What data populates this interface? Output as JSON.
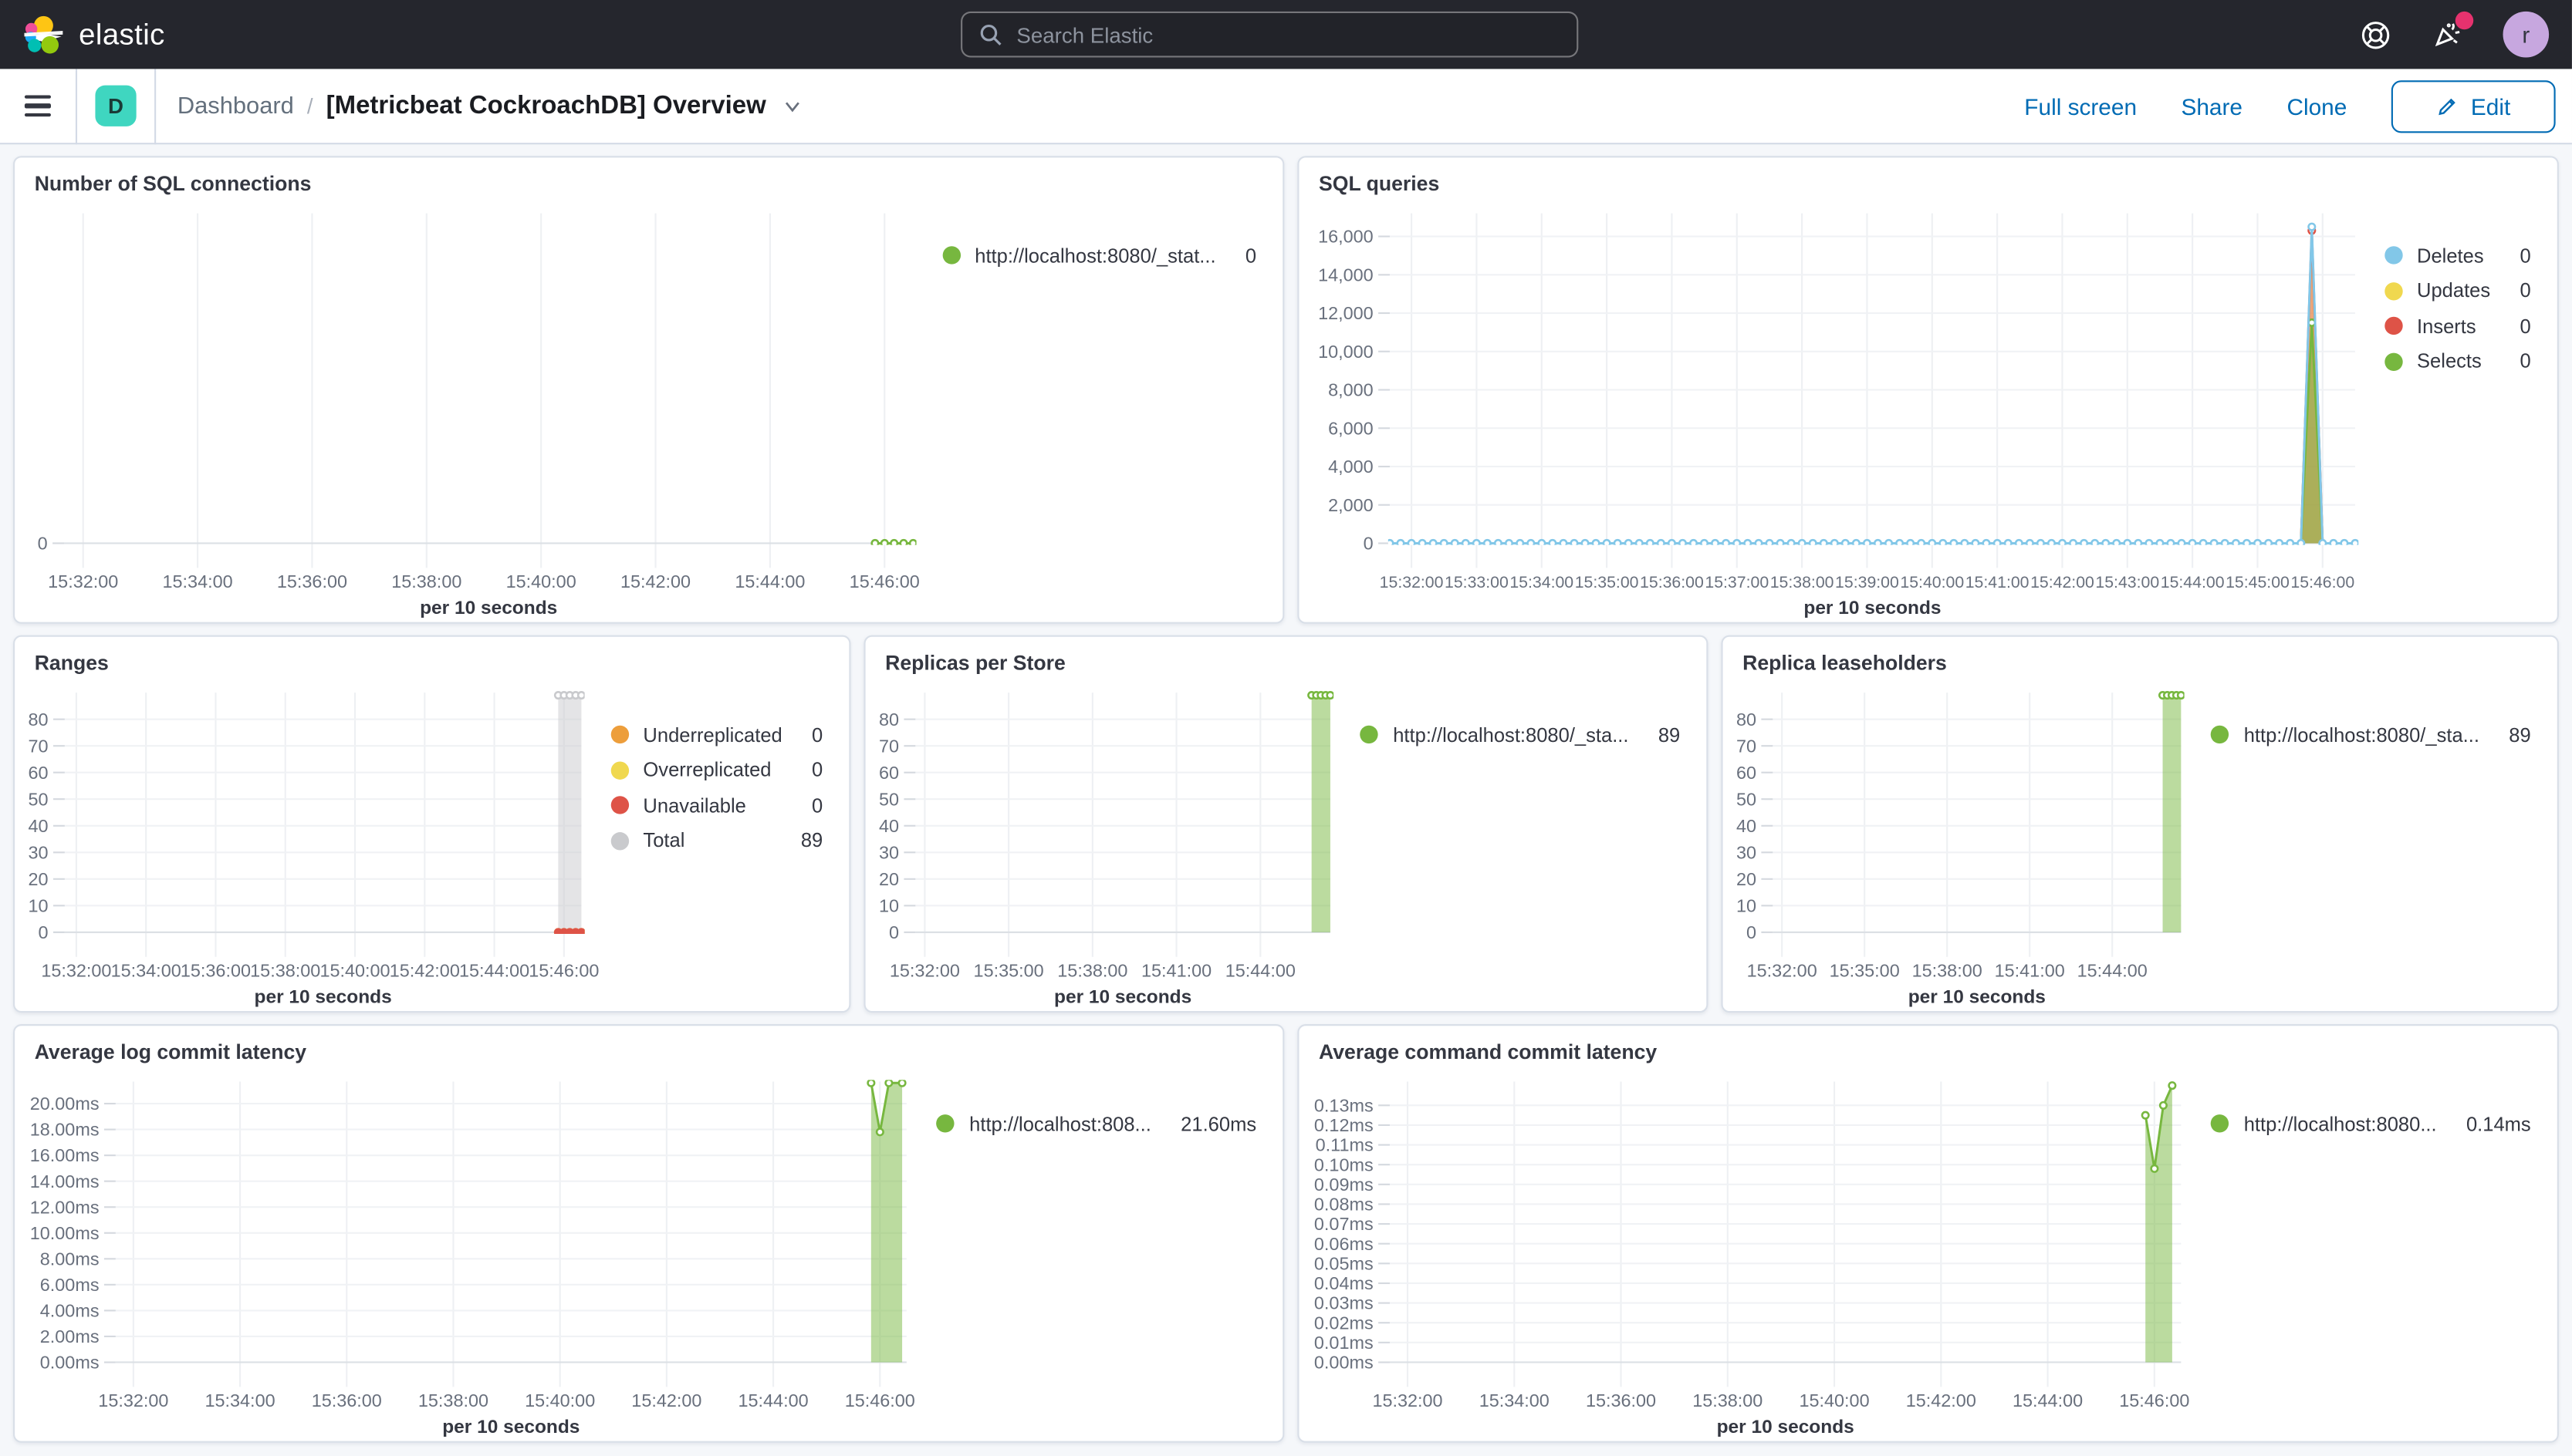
{
  "header": {
    "brand": "elastic",
    "search_placeholder": "Search Elastic",
    "user_initial": "r"
  },
  "toolbar": {
    "space_initial": "D",
    "breadcrumb_root": "Dashboard",
    "breadcrumb_sep": "/",
    "page_title": "[Metricbeat CockroachDB] Overview",
    "full_screen": "Full screen",
    "share": "Share",
    "clone": "Clone",
    "edit": "Edit"
  },
  "colors": {
    "accent_blue": "#006BB4",
    "header_bg": "#25262D",
    "space_badge": "#3FD6C0",
    "notification_pink": "#E6326E",
    "avatar_purple": "#C7A7DF",
    "series_green": "#77B73F",
    "series_blue": "#82C7E8",
    "series_yellow": "#F0D84F",
    "series_orange": "#ED9E3B",
    "series_red": "#DE5347",
    "series_gray": "#C9CACD"
  },
  "panels": [
    {
      "title": "Number of SQL connections",
      "legend": [
        {
          "color": "#77B73F",
          "label": "http://localhost:8080/_stat...",
          "value": "0"
        }
      ],
      "chart_data": {
        "type": "area",
        "xlabel": "per 10 seconds",
        "x_domain": [
          "15:31:40",
          "15:46:30"
        ],
        "x_ticks": [
          "15:32:00",
          "15:34:00",
          "15:36:00",
          "15:38:00",
          "15:40:00",
          "15:42:00",
          "15:44:00",
          "15:46:00"
        ],
        "y_max": 8,
        "y_ticks": {
          "values": [
            0
          ],
          "labels": [
            "0"
          ]
        },
        "series": [
          {
            "name": "http://localhost:8080/_stat...",
            "color": "#77B73F",
            "line": true,
            "fill_opacity": 0,
            "markers": "points",
            "points": [
              [
                "15:45:50",
                0
              ],
              [
                "15:46:00",
                0
              ],
              [
                "15:46:10",
                0
              ],
              [
                "15:46:20",
                0
              ],
              [
                "15:46:30",
                0
              ]
            ]
          }
        ]
      }
    },
    {
      "title": "SQL queries",
      "legend": [
        {
          "color": "#82C7E8",
          "label": "Deletes",
          "value": "0"
        },
        {
          "color": "#F0D84F",
          "label": "Updates",
          "value": "0"
        },
        {
          "color": "#DE5347",
          "label": "Inserts",
          "value": "0"
        },
        {
          "color": "#77B73F",
          "label": "Selects",
          "value": "0"
        }
      ],
      "chart_data": {
        "type": "area",
        "xlabel": "per 10 seconds",
        "x_domain": [
          "15:31:40",
          "15:46:30"
        ],
        "x_ticks": [
          "15:32:00",
          "15:33:00",
          "15:34:00",
          "15:35:00",
          "15:36:00",
          "15:37:00",
          "15:38:00",
          "15:39:00",
          "15:40:00",
          "15:41:00",
          "15:42:00",
          "15:43:00",
          "15:44:00",
          "15:45:00",
          "15:46:00"
        ],
        "y_max": 17200,
        "y_ticks": {
          "values": [
            0,
            2000,
            4000,
            6000,
            8000,
            10000,
            12000,
            14000,
            16000
          ],
          "labels": [
            "0",
            "2,000",
            "4,000",
            "6,000",
            "8,000",
            "10,000",
            "12,000",
            "14,000",
            "16,000"
          ]
        },
        "series": [
          {
            "name": "Updates",
            "color": "#F0D84F",
            "line": true,
            "fill_opacity": 0.5,
            "points": [
              [
                "15:31:40",
                0
              ],
              [
                "15:45:40",
                0
              ],
              [
                "15:45:50",
                16000
              ],
              [
                "15:46:00",
                0
              ],
              [
                "15:46:30",
                0
              ]
            ]
          },
          {
            "name": "Inserts",
            "color": "#DE5347",
            "line": true,
            "fill_opacity": 0.45,
            "marker_times": [
              "15:45:50"
            ],
            "points": [
              [
                "15:31:40",
                0
              ],
              [
                "15:45:40",
                0
              ],
              [
                "15:45:50",
                16300
              ],
              [
                "15:46:00",
                0
              ],
              [
                "15:46:30",
                0
              ]
            ]
          },
          {
            "name": "Selects",
            "color": "#77B73F",
            "line": true,
            "fill_opacity": 0.55,
            "marker_times": [
              "15:45:50"
            ],
            "points": [
              [
                "15:31:40",
                0
              ],
              [
                "15:45:40",
                0
              ],
              [
                "15:45:50",
                11500
              ],
              [
                "15:46:00",
                0
              ],
              [
                "15:46:30",
                0
              ]
            ]
          },
          {
            "name": "Deletes",
            "color": "#82C7E8",
            "line": true,
            "fill_opacity": 0,
            "markers": "interval-10s",
            "points": [
              [
                "15:31:40",
                0
              ],
              [
                "15:45:40",
                0
              ],
              [
                "15:45:50",
                16500
              ],
              [
                "15:46:00",
                0
              ],
              [
                "15:46:30",
                0
              ]
            ]
          }
        ]
      }
    },
    {
      "title": "Ranges",
      "legend": [
        {
          "color": "#ED9E3B",
          "label": "Underreplicated",
          "value": "0"
        },
        {
          "color": "#F0D84F",
          "label": "Overreplicated",
          "value": "0"
        },
        {
          "color": "#DE5347",
          "label": "Unavailable",
          "value": "0"
        },
        {
          "color": "#C9CACD",
          "label": "Total",
          "value": "89"
        }
      ],
      "chart_data": {
        "type": "area",
        "xlabel": "per 10 seconds",
        "x_domain": [
          "15:31:40",
          "15:46:30"
        ],
        "x_ticks": [
          "15:32:00",
          "15:34:00",
          "15:36:00",
          "15:38:00",
          "15:40:00",
          "15:42:00",
          "15:44:00",
          "15:46:00"
        ],
        "y_max": 90,
        "y_ticks": {
          "values": [
            0,
            10,
            20,
            30,
            40,
            50,
            60,
            70,
            80
          ],
          "labels": [
            "0",
            "10",
            "20",
            "30",
            "40",
            "50",
            "60",
            "70",
            "80"
          ]
        },
        "series": [
          {
            "name": "Total",
            "color": "#C9CACD",
            "line": true,
            "fill_opacity": 0.5,
            "markers": "points",
            "points": [
              [
                "15:45:50",
                89
              ],
              [
                "15:46:00",
                89
              ],
              [
                "15:46:10",
                89
              ],
              [
                "15:46:20",
                89
              ],
              [
                "15:46:30",
                89
              ]
            ]
          },
          {
            "name": "Underreplicated",
            "color": "#ED9E3B",
            "line": true,
            "fill_opacity": 0,
            "markers": "points",
            "marker_style": "solid",
            "points": [
              [
                "15:45:50",
                0
              ],
              [
                "15:46:00",
                0
              ],
              [
                "15:46:10",
                0
              ],
              [
                "15:46:20",
                0
              ],
              [
                "15:46:30",
                0
              ]
            ]
          },
          {
            "name": "Overreplicated",
            "color": "#F0D84F",
            "line": true,
            "fill_opacity": 0,
            "markers": "points",
            "marker_style": "solid",
            "points": [
              [
                "15:45:50",
                0
              ],
              [
                "15:46:00",
                0
              ],
              [
                "15:46:10",
                0
              ],
              [
                "15:46:20",
                0
              ],
              [
                "15:46:30",
                0
              ]
            ]
          },
          {
            "name": "Unavailable",
            "color": "#DE5347",
            "line": true,
            "fill_opacity": 0,
            "markers": "points",
            "marker_style": "solid",
            "points": [
              [
                "15:45:50",
                0
              ],
              [
                "15:46:00",
                0
              ],
              [
                "15:46:10",
                0
              ],
              [
                "15:46:20",
                0
              ],
              [
                "15:46:30",
                0
              ]
            ]
          }
        ]
      }
    },
    {
      "title": "Replicas per Store",
      "legend": [
        {
          "color": "#77B73F",
          "label": "http://localhost:8080/_sta...",
          "value": "89"
        }
      ],
      "chart_data": {
        "type": "area",
        "xlabel": "per 10 seconds",
        "x_domain": [
          "15:31:40",
          "15:46:30"
        ],
        "x_ticks": [
          "15:32:00",
          "15:35:00",
          "15:38:00",
          "15:41:00",
          "15:44:00"
        ],
        "y_max": 90,
        "y_ticks": {
          "values": [
            0,
            10,
            20,
            30,
            40,
            50,
            60,
            70,
            80
          ],
          "labels": [
            "0",
            "10",
            "20",
            "30",
            "40",
            "50",
            "60",
            "70",
            "80"
          ]
        },
        "series": [
          {
            "name": "http://localhost:8080/_sta...",
            "color": "#77B73F",
            "line": true,
            "fill_opacity": 0.5,
            "markers": "points",
            "points": [
              [
                "15:45:50",
                89
              ],
              [
                "15:46:00",
                89
              ],
              [
                "15:46:10",
                89
              ],
              [
                "15:46:20",
                89
              ],
              [
                "15:46:30",
                89
              ]
            ]
          }
        ]
      }
    },
    {
      "title": "Replica leaseholders",
      "legend": [
        {
          "color": "#77B73F",
          "label": "http://localhost:8080/_sta...",
          "value": "89"
        }
      ],
      "chart_data": {
        "type": "area",
        "xlabel": "per 10 seconds",
        "x_domain": [
          "15:31:40",
          "15:46:30"
        ],
        "x_ticks": [
          "15:32:00",
          "15:35:00",
          "15:38:00",
          "15:41:00",
          "15:44:00"
        ],
        "y_max": 90,
        "y_ticks": {
          "values": [
            0,
            10,
            20,
            30,
            40,
            50,
            60,
            70,
            80
          ],
          "labels": [
            "0",
            "10",
            "20",
            "30",
            "40",
            "50",
            "60",
            "70",
            "80"
          ]
        },
        "series": [
          {
            "name": "http://localhost:8080/_sta...",
            "color": "#77B73F",
            "line": true,
            "fill_opacity": 0.5,
            "markers": "points",
            "points": [
              [
                "15:45:50",
                89
              ],
              [
                "15:46:00",
                89
              ],
              [
                "15:46:10",
                89
              ],
              [
                "15:46:20",
                89
              ],
              [
                "15:46:30",
                89
              ]
            ]
          }
        ]
      }
    },
    {
      "title": "Average log commit latency",
      "legend": [
        {
          "color": "#77B73F",
          "label": "http://localhost:808...",
          "value": "21.60ms"
        }
      ],
      "chart_data": {
        "type": "area",
        "xlabel": "per 10 seconds",
        "x_domain": [
          "15:31:40",
          "15:46:30"
        ],
        "x_ticks": [
          "15:32:00",
          "15:34:00",
          "15:36:00",
          "15:38:00",
          "15:40:00",
          "15:42:00",
          "15:44:00",
          "15:46:00"
        ],
        "y_max": 21.7,
        "y_ticks": {
          "values": [
            0,
            2,
            4,
            6,
            8,
            10,
            12,
            14,
            16,
            18,
            20
          ],
          "labels": [
            "0.00ms",
            "2.00ms",
            "4.00ms",
            "6.00ms",
            "8.00ms",
            "10.00ms",
            "12.00ms",
            "14.00ms",
            "16.00ms",
            "18.00ms",
            "20.00ms"
          ]
        },
        "series": [
          {
            "name": "http://localhost:808...",
            "color": "#77B73F",
            "line": true,
            "fill_opacity": 0.5,
            "markers": "points",
            "points": [
              [
                "15:45:50",
                21.6
              ],
              [
                "15:46:00",
                17.8
              ],
              [
                "15:46:10",
                21.6
              ],
              [
                "15:46:25",
                21.6
              ]
            ]
          }
        ]
      }
    },
    {
      "title": "Average command commit latency",
      "legend": [
        {
          "color": "#77B73F",
          "label": "http://localhost:8080...",
          "value": "0.14ms"
        }
      ],
      "chart_data": {
        "type": "area",
        "xlabel": "per 10 seconds",
        "x_domain": [
          "15:31:40",
          "15:46:30"
        ],
        "x_ticks": [
          "15:32:00",
          "15:34:00",
          "15:36:00",
          "15:38:00",
          "15:40:00",
          "15:42:00",
          "15:44:00",
          "15:46:00"
        ],
        "y_max": 0.142,
        "y_ticks": {
          "values": [
            0,
            0.01,
            0.02,
            0.03,
            0.04,
            0.05,
            0.06,
            0.07,
            0.08,
            0.09,
            0.1,
            0.11,
            0.12,
            0.13
          ],
          "labels": [
            "0.00ms",
            "0.01ms",
            "0.02ms",
            "0.03ms",
            "0.04ms",
            "0.05ms",
            "0.06ms",
            "0.07ms",
            "0.08ms",
            "0.09ms",
            "0.10ms",
            "0.11ms",
            "0.12ms",
            "0.13ms"
          ]
        },
        "series": [
          {
            "name": "http://localhost:8080...",
            "color": "#77B73F",
            "line": true,
            "fill_opacity": 0.5,
            "markers": "points",
            "points": [
              [
                "15:45:50",
                0.125
              ],
              [
                "15:46:00",
                0.098
              ],
              [
                "15:46:10",
                0.13
              ],
              [
                "15:46:20",
                0.14
              ]
            ]
          }
        ]
      }
    }
  ]
}
